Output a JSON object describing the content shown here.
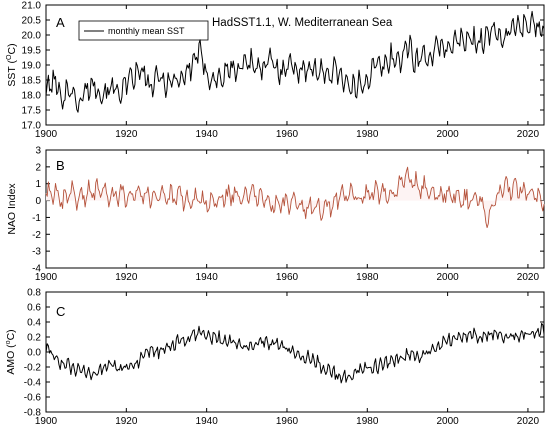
{
  "chart_data": [
    {
      "type": "line",
      "panel_letter": "A",
      "title": "HadSST1.1, W. Mediterranean Sea",
      "ylabel": "SST (°C)",
      "ylabel_parts": {
        "main": "SST (",
        "sup": "O",
        "unit": "C)"
      },
      "xlim": [
        1900,
        2024
      ],
      "ylim": [
        17.0,
        21.0
      ],
      "xticks": [
        1900,
        1920,
        1940,
        1960,
        1980,
        2000,
        2020
      ],
      "yticks": [
        17.0,
        17.5,
        18.0,
        18.5,
        19.0,
        19.5,
        20.0,
        20.5,
        21.0
      ],
      "ytick_labels": [
        "17.0",
        "17.5",
        "18.0",
        "18.5",
        "19.0",
        "19.5",
        "20.0",
        "20.5",
        "21.0"
      ],
      "legend": {
        "entries": [
          "monthly mean SST"
        ],
        "position": "top-left"
      },
      "color": "#000000",
      "series": [
        {
          "name": "monthly mean SST",
          "x": [
            1900,
            1902,
            1904,
            1906,
            1908,
            1910,
            1912,
            1914,
            1916,
            1918,
            1920,
            1922,
            1924,
            1926,
            1928,
            1930,
            1932,
            1934,
            1936,
            1938,
            1940,
            1942,
            1944,
            1946,
            1948,
            1950,
            1952,
            1954,
            1956,
            1958,
            1960,
            1962,
            1964,
            1966,
            1968,
            1970,
            1972,
            1974,
            1976,
            1978,
            1980,
            1982,
            1984,
            1986,
            1988,
            1990,
            1992,
            1994,
            1996,
            1998,
            2000,
            2002,
            2004,
            2006,
            2008,
            2010,
            2012,
            2014,
            2016,
            2018,
            2020,
            2022,
            2024
          ],
          "y": [
            18.1,
            18.5,
            17.9,
            18.3,
            17.6,
            18.2,
            18.4,
            18.0,
            18.3,
            18.1,
            18.3,
            18.6,
            18.8,
            18.2,
            18.6,
            18.4,
            18.5,
            18.6,
            18.9,
            19.5,
            18.7,
            18.5,
            18.6,
            18.9,
            18.8,
            19.2,
            19.0,
            18.8,
            19.2,
            18.7,
            19.1,
            18.9,
            18.8,
            19.0,
            18.7,
            18.7,
            18.9,
            18.6,
            18.1,
            18.4,
            18.5,
            19.0,
            18.9,
            19.3,
            19.1,
            19.7,
            19.1,
            19.3,
            19.3,
            19.6,
            19.6,
            19.8,
            19.8,
            19.8,
            19.8,
            20.0,
            20.1,
            19.9,
            20.2,
            20.3,
            20.4,
            20.3,
            20.2
          ]
        }
      ]
    },
    {
      "type": "line",
      "panel_letter": "B",
      "title": "",
      "ylabel": "NAO Index",
      "xlim": [
        1900,
        2024
      ],
      "ylim": [
        -4,
        3
      ],
      "xticks": [
        1900,
        1920,
        1940,
        1960,
        1980,
        2000,
        2020
      ],
      "yticks": [
        -4,
        -3,
        -2,
        -1,
        0,
        1,
        2,
        3
      ],
      "ytick_labels": [
        "-4",
        "-3",
        "-2",
        "-1",
        "0",
        "1",
        "2",
        "3"
      ],
      "color": "#b5533c",
      "series": [
        {
          "name": "",
          "x": [
            1900,
            1902,
            1904,
            1906,
            1908,
            1910,
            1912,
            1914,
            1916,
            1918,
            1920,
            1922,
            1924,
            1926,
            1928,
            1930,
            1932,
            1934,
            1936,
            1938,
            1940,
            1942,
            1944,
            1946,
            1948,
            1950,
            1952,
            1954,
            1956,
            1958,
            1960,
            1962,
            1964,
            1966,
            1968,
            1970,
            1972,
            1974,
            1976,
            1978,
            1980,
            1982,
            1984,
            1986,
            1988,
            1990,
            1992,
            1994,
            1996,
            1998,
            2000,
            2002,
            2004,
            2006,
            2008,
            2010,
            2012,
            2014,
            2016,
            2018,
            2020,
            2022,
            2024
          ],
          "y": [
            0.3,
            0.5,
            -0.3,
            0.6,
            0.1,
            0.4,
            0.5,
            1.0,
            0.2,
            0.3,
            0.4,
            0.6,
            0.5,
            0.2,
            0.5,
            0.3,
            0.1,
            0.2,
            -0.2,
            0.4,
            -0.3,
            -0.1,
            0.2,
            0.3,
            0.4,
            0.2,
            0.3,
            0.1,
            -0.3,
            -0.1,
            -0.2,
            -0.3,
            -0.4,
            -0.5,
            -0.6,
            -0.3,
            0.0,
            0.2,
            0.3,
            0.2,
            0.4,
            0.5,
            0.3,
            0.4,
            0.9,
            1.4,
            1.0,
            0.8,
            0.4,
            0.3,
            0.4,
            0.3,
            0.1,
            0.0,
            0.2,
            -1.3,
            0.1,
            0.8,
            0.6,
            0.7,
            0.5,
            0.2,
            0.0
          ]
        }
      ]
    },
    {
      "type": "line",
      "panel_letter": "C",
      "title": "",
      "ylabel": "AMO (°C)",
      "ylabel_parts": {
        "main": "AMO (",
        "sup": "o",
        "unit": "C)"
      },
      "xlim": [
        1900,
        2024
      ],
      "ylim": [
        -0.8,
        0.8
      ],
      "xticks": [
        1900,
        1920,
        1940,
        1960,
        1980,
        2000,
        2020
      ],
      "yticks": [
        -0.8,
        -0.6,
        -0.4,
        -0.2,
        0.0,
        0.2,
        0.4,
        0.6,
        0.8
      ],
      "ytick_labels": [
        "-0.8",
        "-0.6",
        "-0.4",
        "-0.2",
        "0.0",
        "0.2",
        "0.4",
        "0.6",
        "0.8"
      ],
      "color": "#000000",
      "series": [
        {
          "name": "",
          "x": [
            1900,
            1902,
            1904,
            1906,
            1908,
            1910,
            1912,
            1914,
            1916,
            1918,
            1920,
            1922,
            1924,
            1926,
            1928,
            1930,
            1932,
            1934,
            1936,
            1938,
            1940,
            1942,
            1944,
            1946,
            1948,
            1950,
            1952,
            1954,
            1956,
            1958,
            1960,
            1962,
            1964,
            1966,
            1968,
            1970,
            1972,
            1974,
            1976,
            1978,
            1980,
            1982,
            1984,
            1986,
            1988,
            1990,
            1992,
            1994,
            1996,
            1998,
            2000,
            2002,
            2004,
            2006,
            2008,
            2010,
            2012,
            2014,
            2016,
            2018,
            2020,
            2022,
            2024
          ],
          "y": [
            0.05,
            -0.05,
            -0.15,
            -0.2,
            -0.25,
            -0.3,
            -0.3,
            -0.2,
            -0.15,
            -0.25,
            -0.2,
            -0.15,
            -0.1,
            0.0,
            0.0,
            0.05,
            0.1,
            0.15,
            0.2,
            0.25,
            0.2,
            0.2,
            0.15,
            0.15,
            0.1,
            0.05,
            0.1,
            0.15,
            0.1,
            0.1,
            0.05,
            0.0,
            -0.05,
            -0.1,
            -0.15,
            -0.25,
            -0.3,
            -0.35,
            -0.3,
            -0.25,
            -0.2,
            -0.2,
            -0.15,
            -0.15,
            -0.1,
            -0.05,
            -0.05,
            -0.05,
            0.0,
            0.1,
            0.15,
            0.2,
            0.2,
            0.25,
            0.2,
            0.25,
            0.25,
            0.2,
            0.25,
            0.2,
            0.25,
            0.25,
            0.3
          ]
        }
      ]
    }
  ]
}
